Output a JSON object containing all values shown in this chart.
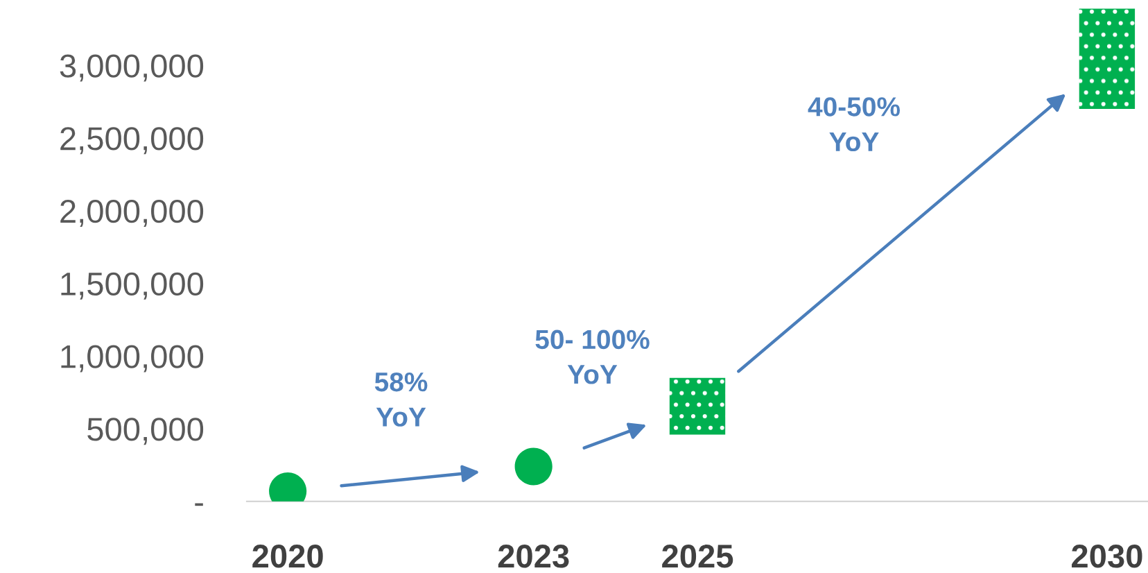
{
  "chart_data": {
    "type": "scatter",
    "series": [
      {
        "color": "#00b050",
        "x": [
          2020,
          2023
        ],
        "values": [
          70000,
          240000
        ],
        "marker": "circle"
      },
      {
        "type": "bar",
        "color": "#00b050",
        "x": [
          2025,
          2030
        ],
        "base": [
          460000,
          2700000
        ],
        "values": [
          390000,
          690000
        ]
      }
    ],
    "xlim": [
      2019.5,
      2030.5
    ],
    "xticks": [
      2020,
      2023,
      2025,
      2030
    ],
    "ylim": [
      0,
      3450000
    ],
    "yticks": [
      {
        "value": 0,
        "label": "-"
      },
      {
        "value": 500000,
        "label": "500,000"
      },
      {
        "value": 1000000,
        "label": "1,000,000"
      },
      {
        "value": 1500000,
        "label": "1,500,000"
      },
      {
        "value": 2000000,
        "label": "2,000,000"
      },
      {
        "value": 2500000,
        "label": "2,500,000"
      },
      {
        "value": 3000000,
        "label": "3,000,000"
      }
    ],
    "grid": false,
    "legend": false,
    "annotations": [
      "58%\nYoY",
      "50- 100%\nYoY",
      "40-50%\nYoY"
    ]
  }
}
